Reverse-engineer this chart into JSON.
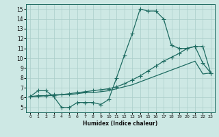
{
  "xlabel": "Humidex (Indice chaleur)",
  "xlim": [
    -0.5,
    23.5
  ],
  "ylim": [
    4.5,
    15.5
  ],
  "xticks": [
    0,
    1,
    2,
    3,
    4,
    5,
    6,
    7,
    8,
    9,
    10,
    11,
    12,
    13,
    14,
    15,
    16,
    17,
    18,
    19,
    20,
    21,
    22,
    23
  ],
  "yticks": [
    5,
    6,
    7,
    8,
    9,
    10,
    11,
    12,
    13,
    14,
    15
  ],
  "background_color": "#cde8e4",
  "grid_color": "#aacec9",
  "line_color": "#1e6b61",
  "line1_x": [
    0,
    1,
    2,
    3,
    4,
    5,
    6,
    7,
    8,
    9,
    10,
    11,
    12,
    13,
    14,
    15,
    16,
    17,
    18,
    19,
    20,
    21,
    22,
    23
  ],
  "line1_y": [
    6.1,
    6.7,
    6.7,
    6.1,
    5.0,
    5.0,
    5.5,
    5.5,
    5.5,
    5.3,
    5.8,
    8.0,
    10.3,
    12.5,
    15.0,
    14.8,
    14.8,
    14.0,
    11.3,
    11.0,
    11.0,
    11.2,
    9.5,
    8.5
  ],
  "line2_x": [
    0,
    1,
    2,
    3,
    4,
    5,
    6,
    7,
    8,
    9,
    10,
    11,
    12,
    13,
    14,
    15,
    16,
    17,
    18,
    19,
    20,
    21,
    22,
    23
  ],
  "line2_y": [
    6.1,
    6.2,
    6.2,
    6.3,
    6.3,
    6.4,
    6.5,
    6.6,
    6.7,
    6.8,
    6.9,
    7.1,
    7.4,
    7.8,
    8.2,
    8.7,
    9.2,
    9.7,
    10.1,
    10.5,
    11.0,
    11.2,
    11.2,
    8.5
  ],
  "line3_x": [
    0,
    1,
    2,
    3,
    4,
    5,
    6,
    7,
    8,
    9,
    10,
    11,
    12,
    13,
    14,
    15,
    16,
    17,
    18,
    19,
    20,
    21,
    22,
    23
  ],
  "line3_y": [
    6.1,
    6.1,
    6.2,
    6.2,
    6.3,
    6.3,
    6.4,
    6.5,
    6.5,
    6.6,
    6.7,
    6.9,
    7.1,
    7.3,
    7.6,
    7.9,
    8.2,
    8.5,
    8.8,
    9.1,
    9.4,
    9.7,
    8.4,
    8.5
  ]
}
